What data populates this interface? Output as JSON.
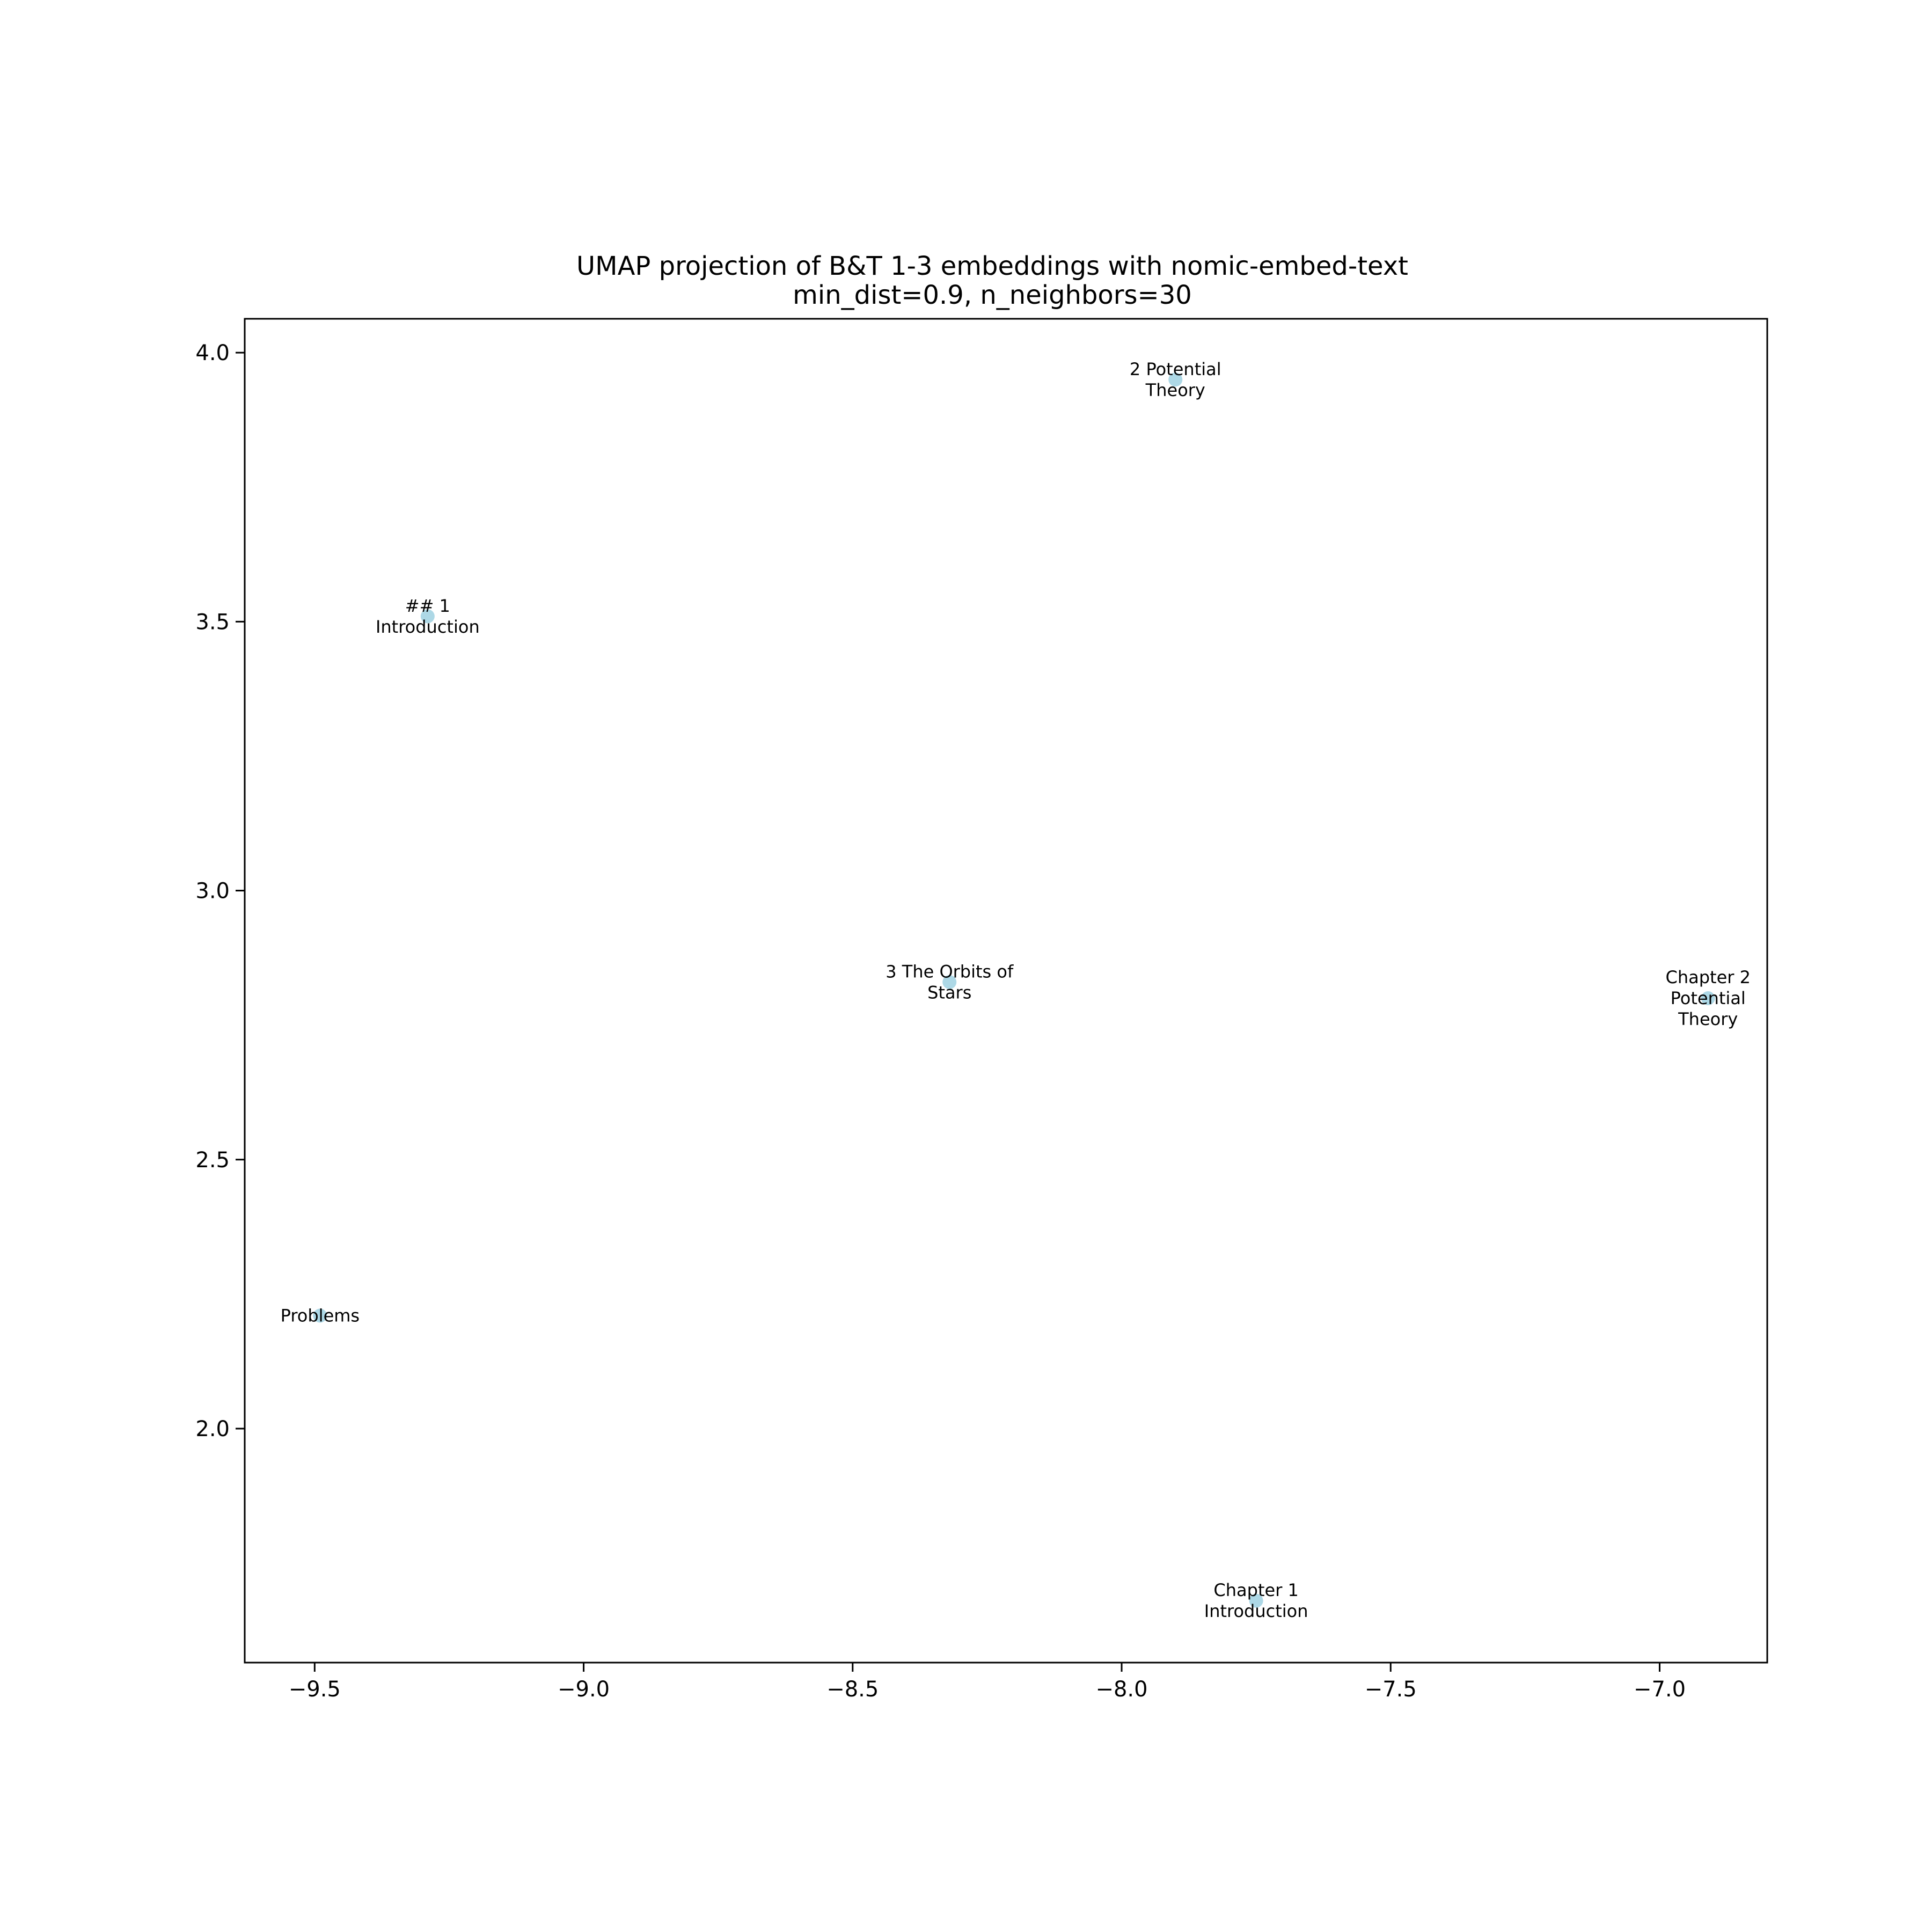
{
  "chart_data": {
    "type": "scatter",
    "title": "UMAP projection of B&T 1-3 embeddings with nomic-embed-text",
    "subtitle": "min_dist=0.9, n_neighbors=30",
    "xlabel": "",
    "ylabel": "",
    "xlim": [
      -9.63,
      -6.8
    ],
    "ylim": [
      1.565,
      4.063
    ],
    "grid": false,
    "legend": null,
    "point_color": "#add8e6",
    "x_ticks": [
      -9.5,
      -9.0,
      -8.5,
      -8.0,
      -7.5,
      -7.0
    ],
    "x_tick_labels": [
      "−9.5",
      "−9.0",
      "−8.5",
      "−8.0",
      "−7.5",
      "−7.0"
    ],
    "y_ticks": [
      2.0,
      2.5,
      3.0,
      3.5,
      4.0
    ],
    "y_tick_labels": [
      "2.0",
      "2.5",
      "3.0",
      "3.5",
      "4.0"
    ],
    "points": [
      {
        "x": -9.29,
        "y": 3.51,
        "label": [
          "## 1",
          "Introduction"
        ]
      },
      {
        "x": -7.9,
        "y": 3.95,
        "label": [
          "2 Potential",
          "Theory"
        ]
      },
      {
        "x": -8.32,
        "y": 2.83,
        "label": [
          "3 The Orbits of",
          "Stars"
        ]
      },
      {
        "x": -6.91,
        "y": 2.8,
        "label": [
          "Chapter 2",
          "Potential",
          "Theory"
        ]
      },
      {
        "x": -9.49,
        "y": 2.21,
        "label": [
          "Problems"
        ]
      },
      {
        "x": -7.75,
        "y": 1.68,
        "label": [
          "Chapter 1",
          "Introduction"
        ]
      }
    ]
  }
}
